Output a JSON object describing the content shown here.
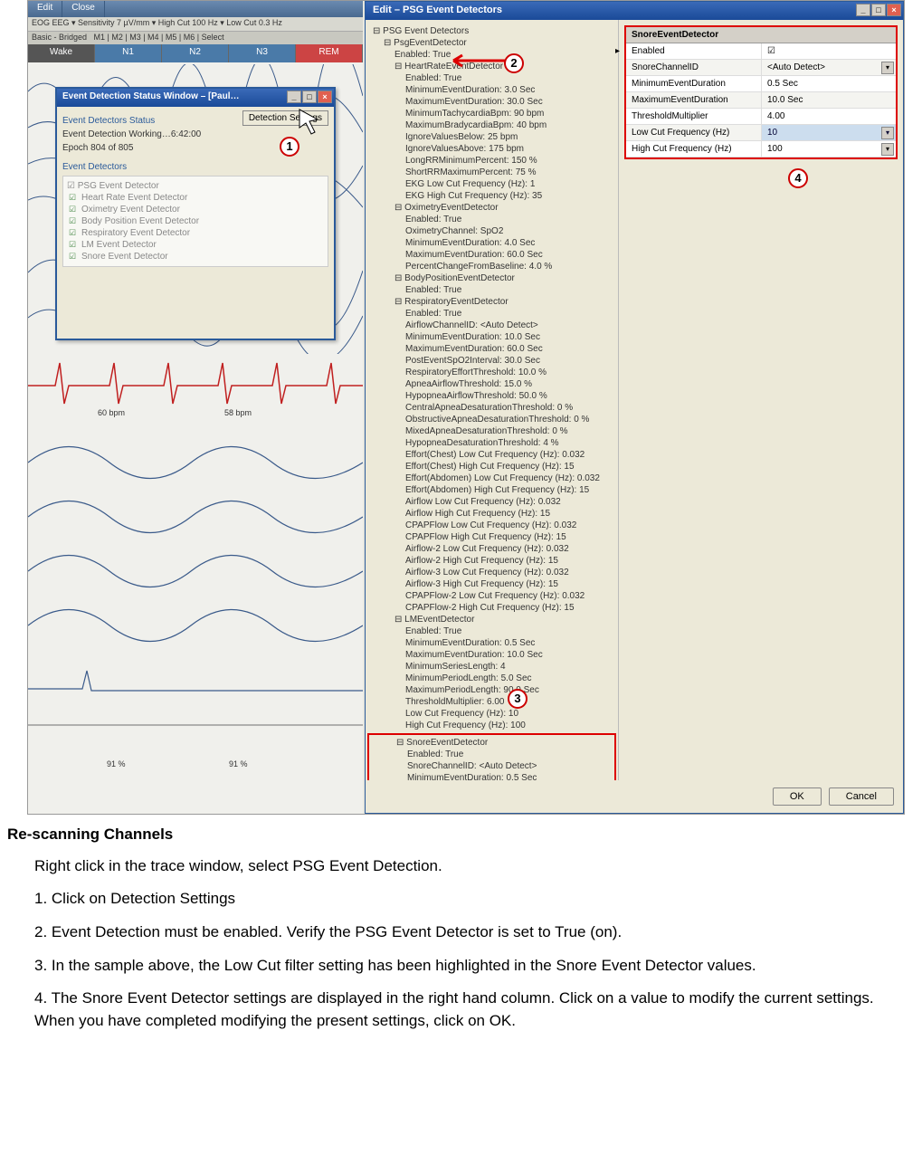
{
  "menubar": {
    "edit": "Edit",
    "close": "Close"
  },
  "toolbar_text": "EOG EEG ▾  Sensitivity  7 µV/mm ▾   High Cut  100 Hz ▾   Low Cut  0.3 Hz",
  "tabs": [
    "Wake",
    "N1",
    "N2",
    "N3",
    "REM"
  ],
  "status_win": {
    "title": "Event Detection Status Window – [Paul…",
    "button": "Detection Settings",
    "section1": "Event Detectors Status",
    "line1": "Event Detection Working…6:42:00",
    "line2": "Epoch 804 of 805",
    "section2": "Event Detectors",
    "tree_root": "☑ PSG Event Detector",
    "tree_items": [
      "Heart Rate Event Detector",
      "Oximetry Event Detector",
      "Body Position Event Detector",
      "Respiratory Event Detector",
      "LM Event Detector",
      "Snore Event Detector"
    ]
  },
  "edit_dlg": {
    "title": "Edit – PSG Event Detectors",
    "root": "PSG Event Detectors",
    "psg": "PsgEventDetector",
    "psg_enabled": "Enabled: True",
    "hr": "HeartRateEventDetector",
    "hr_lines": [
      "Enabled: True",
      "MinimumEventDuration: 3.0 Sec",
      "MaximumEventDuration: 30.0 Sec",
      "MinimumTachycardiaBpm: 90 bpm",
      "MaximumBradycardiaBpm: 40 bpm",
      "IgnoreValuesBelow: 25 bpm",
      "IgnoreValuesAbove: 175 bpm",
      "LongRRMinimumPercent: 150 %",
      "ShortRRMaximumPercent: 75 %",
      "EKG Low Cut Frequency (Hz): 1",
      "EKG High Cut Frequency (Hz): 35"
    ],
    "ox": "OximetryEventDetector",
    "ox_lines": [
      "Enabled: True",
      "OximetryChannel: SpO2",
      "MinimumEventDuration: 4.0 Sec",
      "MaximumEventDuration: 60.0 Sec",
      "PercentChangeFromBaseline: 4.0 %"
    ],
    "bp": "BodyPositionEventDetector",
    "bp_lines": [
      "Enabled: True"
    ],
    "resp": "RespiratoryEventDetector",
    "resp_lines": [
      "Enabled: True",
      "AirflowChannelID: <Auto Detect>",
      "MinimumEventDuration: 10.0 Sec",
      "MaximumEventDuration: 60.0 Sec",
      "PostEventSpO2Interval: 30.0 Sec",
      "RespiratoryEffortThreshold: 10.0 %",
      "ApneaAirflowThreshold: 15.0 %",
      "HypopneaAirflowThreshold: 50.0 %",
      "CentralApneaDesaturationThreshold: 0 %",
      "ObstructiveApneaDesaturationThreshold: 0 %",
      "MixedApneaDesaturationThreshold: 0 %",
      "HypopneaDesaturationThreshold: 4 %",
      "Effort(Chest) Low Cut Frequency (Hz): 0.032",
      "Effort(Chest) High Cut Frequency (Hz): 15",
      "Effort(Abdomen) Low Cut Frequency (Hz): 0.032",
      "Effort(Abdomen) High Cut Frequency (Hz): 15",
      "Airflow Low Cut Frequency (Hz): 0.032",
      "Airflow High Cut Frequency (Hz): 15",
      "CPAPFlow Low Cut Frequency (Hz): 0.032",
      "CPAPFlow High Cut Frequency (Hz): 15",
      "Airflow-2 Low Cut Frequency (Hz): 0.032",
      "Airflow-2 High Cut Frequency (Hz): 15",
      "Airflow-3 Low Cut Frequency (Hz): 0.032",
      "Airflow-3 High Cut Frequency (Hz): 15",
      "CPAPFlow-2 Low Cut Frequency (Hz): 0.032",
      "CPAPFlow-2 High Cut Frequency (Hz): 15"
    ],
    "lm": "LMEventDetector",
    "lm_lines": [
      "Enabled: True",
      "MinimumEventDuration: 0.5 Sec",
      "MaximumEventDuration: 10.0 Sec",
      "MinimumSeriesLength: 4",
      "MinimumPeriodLength: 5.0 Sec",
      "MaximumPeriodLength: 90.0 Sec",
      "ThresholdMultiplier: 6.00",
      "Low Cut Frequency (Hz): 10",
      "High Cut Frequency (Hz): 100"
    ],
    "snore": "SnoreEventDetector",
    "snore_lines": [
      "Enabled: True",
      "SnoreChannelID: <Auto Detect>",
      "MinimumEventDuration: 0.5 Sec",
      "MaximumEventDuration: 10.0 Sec",
      "ThresholdMultiplier: 4.00",
      "Low Cut Frequency (Hz): 10",
      "High Cut Frequency (Hz): 100"
    ],
    "prop_title": "SnoreEventDetector",
    "props": [
      {
        "k": "Enabled",
        "v": "☑",
        "dd": false,
        "arrow": true
      },
      {
        "k": "SnoreChannelID",
        "v": "<Auto Detect>",
        "dd": true
      },
      {
        "k": "MinimumEventDuration",
        "v": "0.5 Sec",
        "dd": false
      },
      {
        "k": "MaximumEventDuration",
        "v": "10.0 Sec",
        "dd": false
      },
      {
        "k": "ThresholdMultiplier",
        "v": "4.00",
        "dd": false
      },
      {
        "k": "Low Cut Frequency (Hz)",
        "v": "10",
        "dd": true,
        "sel": true
      },
      {
        "k": "High Cut Frequency (Hz)",
        "v": "100",
        "dd": true
      }
    ],
    "ok": "OK",
    "cancel": "Cancel"
  },
  "measurements": {
    "bpm1": "60 bpm",
    "bpm2": "58 bpm",
    "pct1": "91 %",
    "pct2": "91 %"
  },
  "markers": {
    "m1": "1",
    "m2": "2",
    "m3": "3",
    "m4": "4"
  },
  "doc": {
    "heading": "Re-scanning Channels",
    "p0": "Right click in the trace window, select PSG Event Detection.",
    "p1": "1.  Click on Detection Settings",
    "p2": "2.  Event Detection must be enabled.  Verify the PSG Event Detector is set to True (on).",
    "p3": "3.  In the sample above, the Low Cut filter setting has been highlighted in the Snore Event Detector values.",
    "p4": "4.  The Snore Event Detector settings are displayed in the right hand column.  Click on a value to modify the current settings.  When you have completed modifying the present settings, click on OK."
  },
  "colors": {
    "titlebar": "#2a5a9a",
    "redbox": "#d00",
    "ekg": "#c02020",
    "wave": "#3a5a8a"
  }
}
